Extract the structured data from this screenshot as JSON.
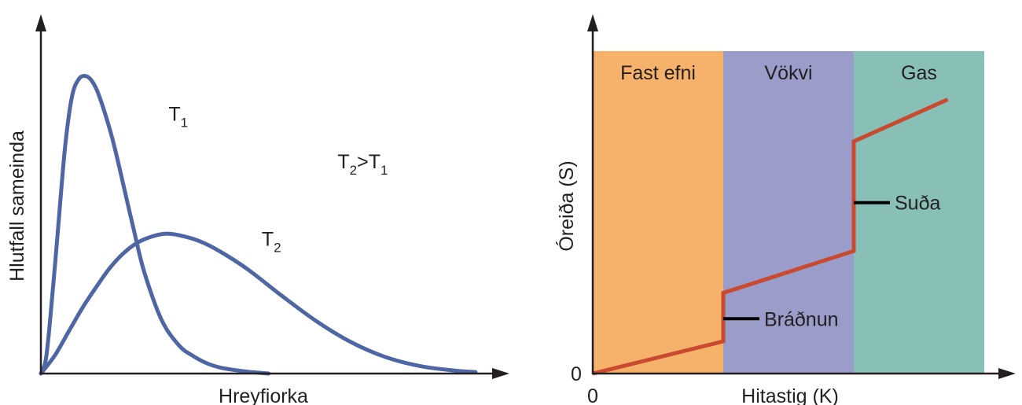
{
  "chart_data": [
    {
      "type": "line",
      "title": "",
      "xlabel": "Hreyfiorka",
      "ylabel": "Hlutfall sameinda",
      "annotation": {
        "base": "T",
        "sub1": "2",
        "op": ">",
        "sub2": "1"
      },
      "series": [
        {
          "label_base": "T",
          "label_sub": "1",
          "color": "#4e66a3",
          "x": [
            0,
            0.08,
            0.18,
            0.25,
            0.35,
            0.45,
            0.55,
            0.65,
            0.75,
            0.85,
            1.0,
            1.1,
            1.2,
            1.35,
            1.5,
            1.75,
            2.0,
            2.2,
            2.4,
            2.6,
            2.8,
            3.0,
            3.2,
            3.3
          ],
          "y": [
            0,
            0.06,
            0.3,
            0.49,
            0.76,
            0.93,
            0.99,
            1.0,
            0.98,
            0.93,
            0.82,
            0.73,
            0.63,
            0.48,
            0.34,
            0.18,
            0.095,
            0.06,
            0.035,
            0.02,
            0.012,
            0.006,
            0.002,
            0
          ]
        },
        {
          "label_base": "T",
          "label_sub": "2",
          "color": "#4e66a3",
          "x": [
            0,
            0.2,
            0.4,
            0.6,
            0.8,
            1.0,
            1.2,
            1.4,
            1.6,
            1.8,
            2.0,
            2.3,
            2.6,
            3.0,
            3.5,
            4.0,
            4.5,
            5.0,
            5.5,
            6.0,
            6.3
          ],
          "y": [
            0,
            0.06,
            0.14,
            0.22,
            0.29,
            0.355,
            0.405,
            0.44,
            0.46,
            0.47,
            0.465,
            0.445,
            0.41,
            0.35,
            0.26,
            0.175,
            0.105,
            0.055,
            0.025,
            0.01,
            0.005
          ]
        }
      ],
      "series_label_positions": [
        {
          "x": 1.85,
          "y": 0.85
        },
        {
          "x": 3.2,
          "y": 0.43
        }
      ],
      "annotation_position": {
        "x": 4.3,
        "y": 0.69
      },
      "xlim": [
        0,
        6.7
      ],
      "ylim": [
        0,
        1.15
      ]
    },
    {
      "type": "line",
      "title": "",
      "xlabel": "Hitastig (K)",
      "ylabel": "Óreiða (S)",
      "x_tick_label": "0",
      "y_tick_label": "0",
      "regions": [
        {
          "label": "Fast efni",
          "from": 0,
          "to": 1,
          "color": "#f6b26b"
        },
        {
          "label": "Vökvi",
          "from": 1,
          "to": 2,
          "color": "#9a9cca"
        },
        {
          "label": "Gas",
          "from": 2,
          "to": 3,
          "color": "#88bfb6"
        }
      ],
      "series": [
        {
          "name": "",
          "color": "#c94a2f",
          "x": [
            0,
            1.0,
            1.0,
            2.0,
            2.0,
            2.72
          ],
          "y": [
            0,
            0.1,
            0.25,
            0.38,
            0.72,
            0.85
          ]
        }
      ],
      "annotations": [
        {
          "label": "Bráðnun",
          "x": 1.0,
          "y": 0.17
        },
        {
          "label": "Suða",
          "x": 2.0,
          "y": 0.53
        }
      ],
      "xlim": [
        0,
        3.0
      ],
      "ylim": [
        0,
        1.0
      ]
    }
  ]
}
